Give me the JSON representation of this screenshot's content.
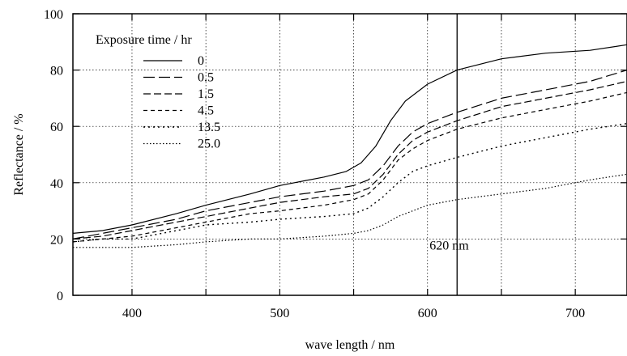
{
  "chart_data": {
    "type": "line",
    "xlabel": "wave length / nm",
    "ylabel": "Reflectance / %",
    "xlim": [
      360,
      735
    ],
    "ylim": [
      0,
      100
    ],
    "x_ticks": [
      400,
      500,
      600,
      700
    ],
    "y_ticks": [
      0,
      20,
      40,
      60,
      80,
      100
    ],
    "grid": "dotted",
    "legend_title": "Exposure time / hr",
    "legend_position": "top-left",
    "vline": {
      "x": 620,
      "label": "620 nm"
    },
    "series": [
      {
        "name": "0",
        "dash": "solid",
        "points": [
          [
            360,
            22
          ],
          [
            380,
            23
          ],
          [
            400,
            25
          ],
          [
            430,
            29
          ],
          [
            450,
            32
          ],
          [
            480,
            36
          ],
          [
            500,
            39
          ],
          [
            530,
            42
          ],
          [
            545,
            44
          ],
          [
            555,
            47
          ],
          [
            565,
            53
          ],
          [
            575,
            62
          ],
          [
            585,
            69
          ],
          [
            600,
            75
          ],
          [
            620,
            80
          ],
          [
            650,
            84
          ],
          [
            680,
            86
          ],
          [
            710,
            87
          ],
          [
            735,
            89
          ]
        ]
      },
      {
        "name": "0.5",
        "dash": "longdash",
        "points": [
          [
            360,
            20
          ],
          [
            380,
            22
          ],
          [
            400,
            24
          ],
          [
            430,
            27
          ],
          [
            450,
            30
          ],
          [
            480,
            33
          ],
          [
            500,
            35
          ],
          [
            530,
            37
          ],
          [
            550,
            39
          ],
          [
            560,
            41
          ],
          [
            570,
            46
          ],
          [
            580,
            53
          ],
          [
            590,
            58
          ],
          [
            600,
            61
          ],
          [
            620,
            65
          ],
          [
            650,
            70
          ],
          [
            680,
            73
          ],
          [
            710,
            76
          ],
          [
            735,
            80
          ]
        ]
      },
      {
        "name": "1.5",
        "dash": "dash",
        "points": [
          [
            360,
            20
          ],
          [
            380,
            21
          ],
          [
            400,
            23
          ],
          [
            430,
            26
          ],
          [
            450,
            28
          ],
          [
            480,
            31
          ],
          [
            500,
            33
          ],
          [
            530,
            35
          ],
          [
            550,
            36
          ],
          [
            560,
            38
          ],
          [
            570,
            43
          ],
          [
            580,
            50
          ],
          [
            590,
            55
          ],
          [
            600,
            58
          ],
          [
            620,
            62
          ],
          [
            650,
            67
          ],
          [
            680,
            70
          ],
          [
            710,
            73
          ],
          [
            735,
            76
          ]
        ]
      },
      {
        "name": "4.5",
        "dash": "shortdash",
        "points": [
          [
            360,
            19
          ],
          [
            380,
            20
          ],
          [
            400,
            21
          ],
          [
            430,
            24
          ],
          [
            450,
            26
          ],
          [
            480,
            29
          ],
          [
            500,
            30
          ],
          [
            530,
            32
          ],
          [
            550,
            34
          ],
          [
            560,
            36
          ],
          [
            570,
            41
          ],
          [
            580,
            48
          ],
          [
            590,
            52
          ],
          [
            600,
            55
          ],
          [
            620,
            59
          ],
          [
            650,
            63
          ],
          [
            680,
            66
          ],
          [
            710,
            69
          ],
          [
            735,
            72
          ]
        ]
      },
      {
        "name": "13.5",
        "dash": "dotted",
        "points": [
          [
            360,
            19
          ],
          [
            380,
            20
          ],
          [
            400,
            20
          ],
          [
            430,
            23
          ],
          [
            450,
            25
          ],
          [
            480,
            26
          ],
          [
            500,
            27
          ],
          [
            530,
            28
          ],
          [
            550,
            29
          ],
          [
            560,
            31
          ],
          [
            570,
            35
          ],
          [
            580,
            40
          ],
          [
            590,
            44
          ],
          [
            600,
            46
          ],
          [
            620,
            49
          ],
          [
            650,
            53
          ],
          [
            680,
            56
          ],
          [
            710,
            59
          ],
          [
            735,
            61
          ]
        ]
      },
      {
        "name": "25.0",
        "dash": "finedot",
        "points": [
          [
            360,
            17
          ],
          [
            380,
            17
          ],
          [
            400,
            17
          ],
          [
            430,
            18
          ],
          [
            450,
            19
          ],
          [
            480,
            20
          ],
          [
            500,
            20
          ],
          [
            530,
            21
          ],
          [
            550,
            22
          ],
          [
            560,
            23
          ],
          [
            570,
            25
          ],
          [
            580,
            28
          ],
          [
            590,
            30
          ],
          [
            600,
            32
          ],
          [
            620,
            34
          ],
          [
            650,
            36
          ],
          [
            680,
            38
          ],
          [
            710,
            41
          ],
          [
            735,
            43
          ]
        ]
      }
    ]
  }
}
